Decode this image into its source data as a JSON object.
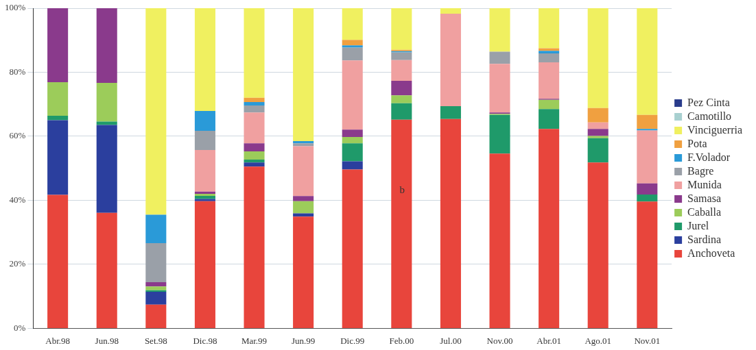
{
  "chart_data": {
    "type": "bar",
    "stacked": true,
    "categories": [
      "Abr.98",
      "Jun.98",
      "Set.98",
      "Dic.98",
      "Mar.99",
      "Jun.99",
      "Dic.99",
      "Feb.00",
      "Jul.00",
      "Nov.00",
      "Abr.01",
      "Ago.01",
      "Nov.01"
    ],
    "series": [
      {
        "name": "Anchoveta",
        "color": "#e8453c",
        "values": [
          41.7,
          36.1,
          7.4,
          39.7,
          50.5,
          34.9,
          49.6,
          65.2,
          65.4,
          54.6,
          62.3,
          51.8,
          39.6
        ]
      },
      {
        "name": "Sardina",
        "color": "#2b3f9e",
        "values": [
          23.3,
          27.4,
          4.0,
          0.7,
          1.3,
          1.0,
          2.6,
          null,
          null,
          null,
          null,
          null,
          null
        ]
      },
      {
        "name": "Jurel",
        "color": "#1f9a6a",
        "values": [
          1.4,
          1.1,
          0.5,
          1.0,
          0.9,
          null,
          5.6,
          5.1,
          4.0,
          12.1,
          6.2,
          7.6,
          2.2
        ]
      },
      {
        "name": "Caballa",
        "color": "#9ccc5a",
        "values": [
          10.5,
          12.1,
          1.2,
          0.6,
          2.6,
          3.8,
          2.0,
          2.5,
          null,
          0.3,
          2.9,
          0.7,
          null
        ]
      },
      {
        "name": "Samasa",
        "color": "#8a3a8c",
        "values": [
          23.1,
          23.3,
          1.3,
          0.7,
          2.5,
          1.6,
          2.3,
          4.5,
          null,
          0.4,
          0.3,
          2.2,
          3.5
        ]
      },
      {
        "name": "Munida",
        "color": "#f0a0a0",
        "values": [
          null,
          null,
          null,
          13.0,
          9.6,
          15.6,
          21.6,
          6.5,
          28.9,
          15.2,
          11.4,
          2.0,
          16.5
        ]
      },
      {
        "name": "Bagre",
        "color": "#9aa0a8",
        "values": [
          null,
          null,
          12.2,
          6.0,
          2.2,
          0.9,
          4.0,
          2.4,
          null,
          3.8,
          2.8,
          null,
          null
        ]
      },
      {
        "name": "F.Volador",
        "color": "#2a9ad8",
        "values": [
          null,
          null,
          8.9,
          6.2,
          1.1,
          0.7,
          0.7,
          0.4,
          null,
          null,
          0.8,
          null,
          0.5
        ]
      },
      {
        "name": "Pota",
        "color": "#f0a040",
        "values": [
          null,
          null,
          null,
          null,
          1.3,
          null,
          1.7,
          0.4,
          null,
          null,
          0.8,
          4.5,
          4.4
        ]
      },
      {
        "name": "Vinciguerria",
        "color": "#f0f060",
        "values": [
          null,
          null,
          64.5,
          32.1,
          28.0,
          41.5,
          9.9,
          13.0,
          1.7,
          13.6,
          12.5,
          31.2,
          33.3
        ]
      },
      {
        "name": "Camotillo",
        "color": "#a8d0d0",
        "values": [
          null,
          null,
          null,
          null,
          null,
          null,
          null,
          null,
          null,
          null,
          null,
          null,
          null
        ]
      },
      {
        "name": "Pez Cinta",
        "color": "#2a3c8c",
        "values": [
          null,
          null,
          null,
          null,
          null,
          null,
          null,
          null,
          null,
          null,
          null,
          null,
          null
        ]
      }
    ],
    "ylim": [
      0,
      100
    ],
    "yticks": [
      {
        "value": 0,
        "label": "0%"
      },
      {
        "value": 20,
        "label": "20%"
      },
      {
        "value": 40,
        "label": "40%"
      },
      {
        "value": 60,
        "label": "60%"
      },
      {
        "value": 80,
        "label": "80%"
      },
      {
        "value": 100,
        "label": "100%"
      }
    ],
    "grid": "y",
    "legend": "right",
    "annotations": [
      "b"
    ]
  }
}
